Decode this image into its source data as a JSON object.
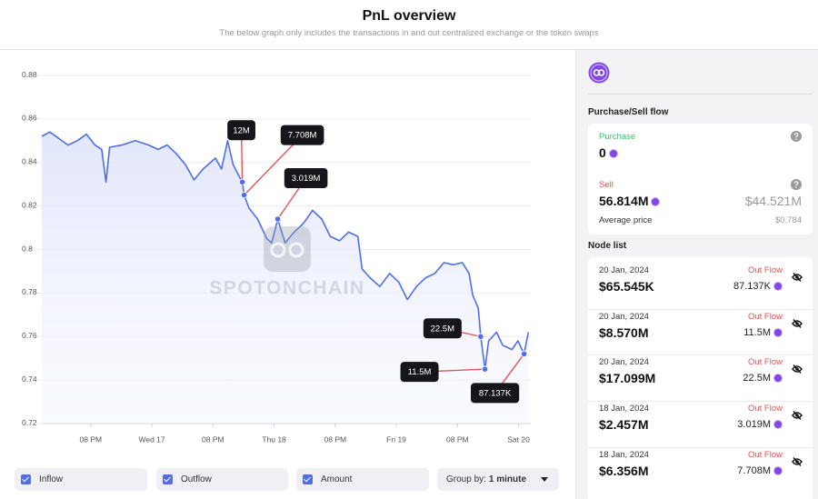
{
  "header": {
    "title": "PnL overview",
    "subtitle": "The below graph only includes the transactions in and out centralized exchange or the token swaps"
  },
  "chart_data": {
    "type": "line",
    "x": [
      -0.8,
      -0.67,
      -0.52,
      -0.37,
      -0.22,
      -0.07,
      0.07,
      0.18,
      0.25,
      0.31,
      0.51,
      0.73,
      0.95,
      1.1,
      1.25,
      1.4,
      1.55,
      1.69,
      1.84,
      2.04,
      2.14,
      2.24,
      2.33,
      2.44,
      2.48,
      2.51,
      2.59,
      2.73,
      2.88,
      2.96,
      3.06,
      3.18,
      3.33,
      3.48,
      3.63,
      3.78,
      3.92,
      4.07,
      4.22,
      4.37,
      4.44,
      4.57,
      4.73,
      4.89,
      5.04,
      5.18,
      5.33,
      5.48,
      5.63,
      5.78,
      5.93,
      6.08,
      6.19,
      6.25,
      6.34,
      6.38,
      6.45,
      6.51,
      6.64,
      6.74,
      6.89,
      6.99,
      7.09,
      7.16
    ],
    "values": [
      0.852,
      0.854,
      0.851,
      0.848,
      0.85,
      0.853,
      0.848,
      0.846,
      0.831,
      0.847,
      0.848,
      0.85,
      0.848,
      0.846,
      0.848,
      0.844,
      0.839,
      0.832,
      0.837,
      0.842,
      0.837,
      0.85,
      0.839,
      0.833,
      0.831,
      0.825,
      0.819,
      0.814,
      0.805,
      0.803,
      0.814,
      0.803,
      0.808,
      0.812,
      0.818,
      0.814,
      0.806,
      0.804,
      0.808,
      0.806,
      0.791,
      0.787,
      0.783,
      0.789,
      0.785,
      0.777,
      0.783,
      0.787,
      0.789,
      0.794,
      0.793,
      0.794,
      0.789,
      0.779,
      0.773,
      0.76,
      0.745,
      0.758,
      0.762,
      0.756,
      0.754,
      0.758,
      0.752,
      0.762
    ],
    "color": "#4f6ee8",
    "xlim": [
      -0.8,
      7.2
    ],
    "xticks": [
      {
        "value": 0,
        "label": "08 PM"
      },
      {
        "value": 1,
        "label": "Wed 17"
      },
      {
        "value": 2,
        "label": "08 PM"
      },
      {
        "value": 3,
        "label": "Thu 18"
      },
      {
        "value": 4,
        "label": "08 PM"
      },
      {
        "value": 5,
        "label": "Fri 19"
      },
      {
        "value": 6,
        "label": "08 PM"
      },
      {
        "value": 7,
        "label": "Sat 20"
      }
    ],
    "ylim": [
      0.72,
      0.88
    ],
    "yticks": [
      0.72,
      0.74,
      0.76,
      0.78,
      0.8,
      0.82,
      0.84,
      0.86,
      0.88
    ],
    "grid": true,
    "annotations": [
      {
        "text": "12M",
        "x": 2.48,
        "y": 0.831
      },
      {
        "text": "7.708M",
        "x": 2.51,
        "y": 0.825
      },
      {
        "text": "3.019M",
        "x": 3.06,
        "y": 0.814
      },
      {
        "text": "22.5M",
        "x": 6.38,
        "y": 0.76
      },
      {
        "text": "11.5M",
        "x": 6.45,
        "y": 0.745
      },
      {
        "text": "87.137K",
        "x": 7.09,
        "y": 0.752
      }
    ],
    "watermark": "SPOTONCHAIN"
  },
  "controls": {
    "checkboxes": [
      "Inflow",
      "Outflow",
      "Amount"
    ],
    "group_by_label": "Group by:",
    "group_by_value": "1 minute"
  },
  "panel": {
    "section_title": "Purchase/Sell flow",
    "purchase_label": "Purchase",
    "purchase_amount": "0",
    "sell_label": "Sell",
    "sell_amount": "56.814M",
    "sell_value": "$44.521M",
    "average_price_label": "Average price",
    "average_price": "$0.784",
    "node_list_title": "Node list",
    "nodes": [
      {
        "date": "20 Jan, 2024",
        "direction": "Out Flow",
        "value": "$65.545K",
        "amount": "87.137K"
      },
      {
        "date": "20 Jan, 2024",
        "direction": "Out Flow",
        "value": "$8.570M",
        "amount": "11.5M"
      },
      {
        "date": "20 Jan, 2024",
        "direction": "Out Flow",
        "value": "$17.099M",
        "amount": "22.5M"
      },
      {
        "date": "18 Jan, 2024",
        "direction": "Out Flow",
        "value": "$2.457M",
        "amount": "3.019M"
      },
      {
        "date": "18 Jan, 2024",
        "direction": "Out Flow",
        "value": "$6.356M",
        "amount": "7.708M"
      }
    ]
  }
}
